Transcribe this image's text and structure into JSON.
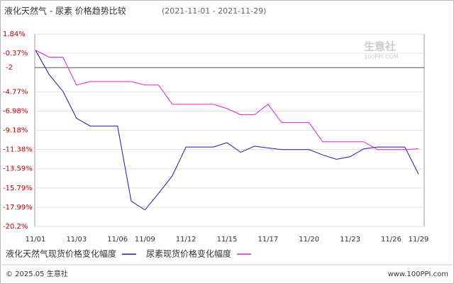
{
  "chart_data": {
    "type": "line",
    "title": "液化天然气 - 尿素 价格趋势比较",
    "subtitle": "(2021-11-01 - 2021-11-29)",
    "categories": [
      "11/01",
      null,
      null,
      "11/03",
      null,
      null,
      "11/06",
      null,
      "11/09",
      null,
      null,
      "11/12",
      null,
      null,
      "11/15",
      null,
      null,
      "11/17",
      null,
      null,
      "11/20",
      null,
      null,
      "11/23",
      null,
      null,
      "11/26",
      null,
      "11/29"
    ],
    "series": [
      {
        "name": "液化天然气现货价格变化幅度",
        "color": "#1a1aa8",
        "values": [
          0,
          -2.8,
          -4.7,
          -7.8,
          -8.7,
          -8.7,
          -8.7,
          -17.3,
          -18.3,
          -16.4,
          -14.4,
          -11.1,
          -11.1,
          -11.1,
          -10.6,
          -11.7,
          -11.0,
          -11.2,
          -11.4,
          -11.4,
          -11.4,
          -12.0,
          -12.5,
          -12.2,
          -11.3,
          -11.1,
          -11.1,
          -11.1,
          -14.2
        ]
      },
      {
        "name": "尿素现货价格变化幅度",
        "color": "#e020d0",
        "values": [
          0,
          -0.8,
          -0.8,
          -4.0,
          -3.6,
          -3.6,
          -3.6,
          -3.6,
          -4.0,
          -4.0,
          -6.2,
          -6.2,
          -6.2,
          -6.2,
          -6.7,
          -7.4,
          -7.4,
          -6.2,
          -8.3,
          -8.3,
          -8.3,
          -10.5,
          -10.5,
          -10.5,
          -10.5,
          -11.4,
          -11.4,
          -11.4,
          -11.3
        ]
      }
    ],
    "ylim": [
      -20.2,
      1.84
    ],
    "yticks": [
      {
        "value": 1.84,
        "label": "1.84%"
      },
      {
        "value": -0.37,
        "label": "-0.37%"
      },
      {
        "value": -4.77,
        "label": "-4.77%"
      },
      {
        "value": -6.98,
        "label": "-6.98%"
      },
      {
        "value": -9.18,
        "label": "-9.18%"
      },
      {
        "value": -11.38,
        "label": "-11.38%"
      },
      {
        "value": -13.59,
        "label": "-13.59%"
      },
      {
        "value": -15.79,
        "label": "-15.79%"
      },
      {
        "value": -17.99,
        "label": "-17.99%"
      },
      {
        "value": -20.2,
        "label": "-20.2%"
      }
    ],
    "reference_line": {
      "value": -2,
      "label": "-2"
    },
    "grid": true,
    "watermark": {
      "name": "生意社",
      "site": "100PPI.COM"
    },
    "footer": {
      "left": "© 2025.05 生意社",
      "right": "www.100PPI.com"
    }
  }
}
